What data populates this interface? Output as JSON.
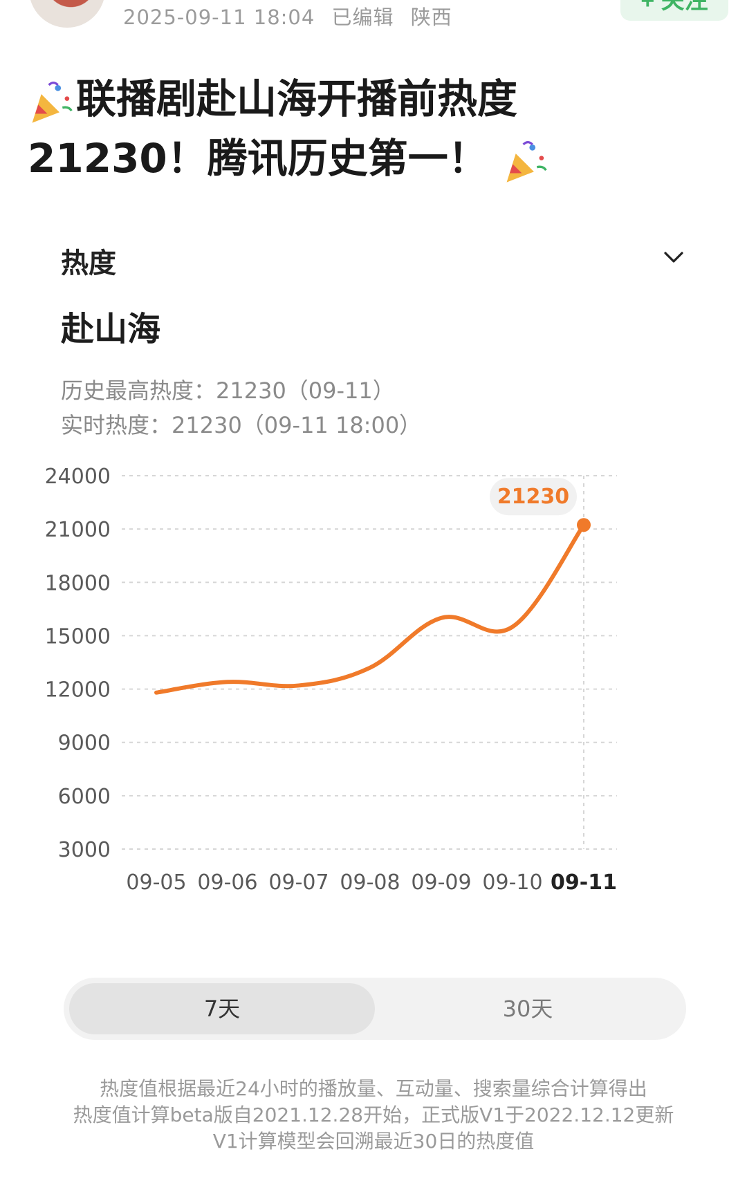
{
  "header": {
    "date": "2025-09-11 18:04",
    "edited": "已编辑",
    "location": "陕西",
    "follow_label": "+ 关注"
  },
  "post": {
    "title_line1": "联播剧赴山海开播前热度",
    "title_line2": "21230！腾讯历史第一！"
  },
  "panel": {
    "metric_label": "热度",
    "show_name": "赴山海",
    "history_high": "历史最高热度：21230（09-11）",
    "realtime": "实时热度：21230（09-11 18:00）",
    "peak_label": "21230"
  },
  "toggle": {
    "option_7d": "7天",
    "option_30d": "30天",
    "selected": "7天"
  },
  "notes": {
    "line1": "热度值根据最近24小时的播放量、互动量、搜索量综合计算得出",
    "line2": "热度值计算beta版自2021.12.28开始，正式版V1于2022.12.12更新",
    "line3": "V1计算模型会回溯最近30日的热度值"
  },
  "colors": {
    "accent": "#f07a2a",
    "follow": "#3fb464",
    "grid": "#d6d6d6"
  },
  "chart_data": {
    "type": "line",
    "categories": [
      "09-05",
      "09-06",
      "09-07",
      "09-08",
      "09-09",
      "09-10",
      "09-11"
    ],
    "values": [
      11800,
      12400,
      12200,
      13200,
      16000,
      15500,
      21230
    ],
    "title": "",
    "xlabel": "",
    "ylabel": "",
    "ylim": [
      3000,
      24000
    ],
    "yticks": [
      24000,
      21000,
      18000,
      15000,
      12000,
      9000,
      6000,
      3000
    ],
    "grid": true,
    "highlight_index": 6
  }
}
